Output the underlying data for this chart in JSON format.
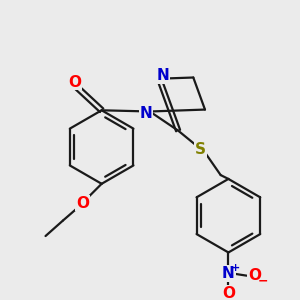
{
  "background_color": "#ebebeb",
  "bond_color": "#1a1a1a",
  "atom_colors": {
    "O": "#ff0000",
    "N": "#0000cc",
    "S": "#808000",
    "C": "#1a1a1a"
  },
  "figsize": [
    3.0,
    3.0
  ],
  "dpi": 100,
  "lw": 1.6
}
